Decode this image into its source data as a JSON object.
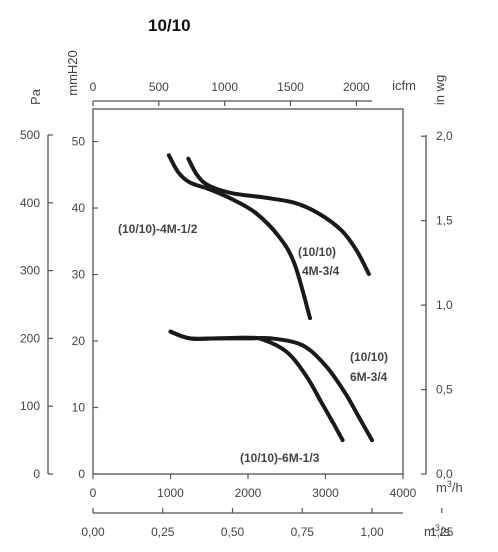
{
  "chart_data": {
    "type": "line",
    "title": "10/10",
    "x_primary": {
      "label": "m3/h",
      "ticks": [
        0,
        1000,
        2000,
        3000,
        4000
      ],
      "range": [
        0,
        4000
      ]
    },
    "x_top": {
      "label": "icfm",
      "ticks": [
        0,
        500,
        1000,
        1500,
        2000
      ]
    },
    "x_bottom": {
      "label": "m3/s",
      "ticks": [
        "0,00",
        "0,25",
        "0,50",
        "0,75",
        "1,00",
        "1,25"
      ],
      "values": [
        0,
        0.25,
        0.5,
        0.75,
        1.0,
        1.25
      ]
    },
    "y_left_pa": {
      "label": "Pa",
      "ticks": [
        0,
        100,
        200,
        300,
        400,
        500
      ],
      "range": [
        0,
        500
      ]
    },
    "y_left_mmh2o": {
      "label": "mmH20",
      "ticks": [
        0,
        10,
        20,
        30,
        40,
        50
      ]
    },
    "y_right": {
      "label": "in wg",
      "ticks": [
        "0,0",
        "0,5",
        "1,0",
        "1,5",
        "2,0"
      ],
      "values": [
        0,
        0.5,
        1.0,
        1.5,
        2.0
      ]
    },
    "grid": false,
    "series": [
      {
        "name": "(10/10)-4M-1/2",
        "points": [
          [
            980,
            470
          ],
          [
            1100,
            445
          ],
          [
            1250,
            430
          ],
          [
            1500,
            420
          ],
          [
            1800,
            405
          ],
          [
            2100,
            385
          ],
          [
            2400,
            350
          ],
          [
            2600,
            310
          ],
          [
            2800,
            230
          ]
        ]
      },
      {
        "name": "(10/10) 4M-3/4",
        "points": [
          [
            1230,
            465
          ],
          [
            1350,
            440
          ],
          [
            1500,
            425
          ],
          [
            1800,
            414
          ],
          [
            2200,
            408
          ],
          [
            2600,
            400
          ],
          [
            2900,
            385
          ],
          [
            3200,
            360
          ],
          [
            3400,
            330
          ],
          [
            3560,
            295
          ]
        ]
      },
      {
        "name": "(10/10) 6M-3/4",
        "points": [
          [
            1000,
            210
          ],
          [
            1250,
            200
          ],
          [
            1600,
            200
          ],
          [
            2000,
            200
          ],
          [
            2300,
            200
          ],
          [
            2700,
            190
          ],
          [
            3000,
            160
          ],
          [
            3250,
            120
          ],
          [
            3450,
            80
          ],
          [
            3600,
            50
          ]
        ]
      },
      {
        "name": "(10/10)-6M-1/3",
        "points": [
          [
            1000,
            210
          ],
          [
            1250,
            200
          ],
          [
            1600,
            200
          ],
          [
            2000,
            201
          ],
          [
            2200,
            198
          ],
          [
            2500,
            180
          ],
          [
            2750,
            145
          ],
          [
            2950,
            105
          ],
          [
            3100,
            75
          ],
          [
            3220,
            50
          ]
        ]
      }
    ],
    "labels": {
      "s1": "(10/10)-4M-1/2",
      "s2a": "(10/10)",
      "s2b": "4M-3/4",
      "s3a": "(10/10)",
      "s3b": "6M-3/4",
      "s4": "(10/10)-6M-1/3"
    }
  }
}
